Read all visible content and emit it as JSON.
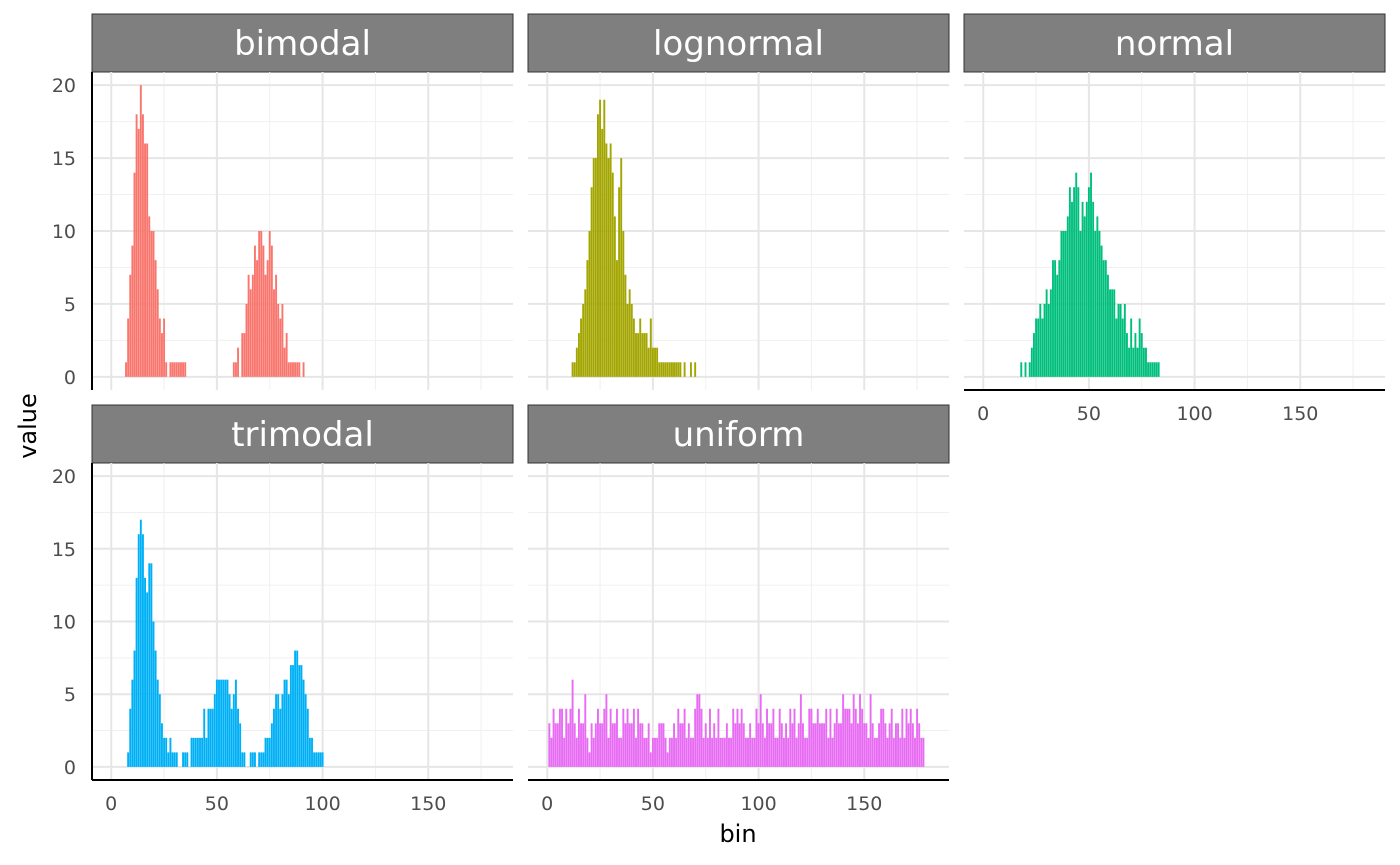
{
  "chart_data": {
    "type": "bar",
    "layout": "facet_wrap",
    "xlabel": "bin",
    "ylabel": "value",
    "xlim": [
      0,
      180
    ],
    "ylim": [
      0,
      20
    ],
    "x_ticks": [
      0,
      50,
      100,
      150
    ],
    "y_ticks": [
      0,
      5,
      10,
      15,
      20
    ],
    "grid": true,
    "legend": "none",
    "panels": [
      {
        "name": "bimodal",
        "color": "#F8766D",
        "bins": [
          7,
          8,
          9,
          10,
          11,
          12,
          13,
          14,
          15,
          16,
          17,
          18,
          19,
          20,
          21,
          22,
          23,
          24,
          25,
          26,
          28,
          29,
          30,
          31,
          32,
          33,
          34,
          35,
          58,
          59,
          60,
          62,
          63,
          64,
          65,
          66,
          67,
          68,
          69,
          70,
          71,
          72,
          73,
          74,
          75,
          76,
          77,
          78,
          79,
          80,
          81,
          82,
          83,
          84,
          85,
          86,
          87,
          88,
          89,
          91
        ],
        "values": [
          1,
          4,
          7,
          9,
          14,
          18,
          17,
          20,
          18,
          16,
          16,
          11,
          10,
          10,
          8,
          6,
          4,
          3,
          4,
          1,
          1,
          1,
          1,
          1,
          1,
          1,
          1,
          1,
          1,
          1,
          2,
          3,
          3,
          5,
          7,
          6,
          7,
          9,
          8,
          10,
          10,
          9,
          7,
          8,
          10,
          9,
          6,
          7,
          5,
          4,
          5,
          2,
          3,
          1,
          1,
          1,
          1,
          1,
          1,
          1
        ]
      },
      {
        "name": "lognormal",
        "color": "#A3A500",
        "bins": [
          12,
          13,
          14,
          15,
          16,
          17,
          18,
          19,
          20,
          21,
          22,
          23,
          24,
          25,
          26,
          27,
          28,
          29,
          30,
          31,
          32,
          33,
          34,
          35,
          36,
          37,
          38,
          39,
          40,
          41,
          42,
          43,
          44,
          45,
          46,
          47,
          48,
          49,
          50,
          51,
          52,
          53,
          54,
          55,
          56,
          57,
          58,
          59,
          60,
          61,
          62,
          63,
          65,
          68,
          70
        ],
        "values": [
          1,
          1,
          2,
          3,
          4,
          5,
          6,
          8,
          10,
          13,
          15,
          15,
          18,
          19,
          17,
          19,
          16,
          15,
          16,
          14,
          11,
          8,
          13,
          15,
          10,
          7,
          5,
          6,
          5,
          4,
          3,
          3,
          4,
          3,
          3,
          3,
          2,
          4,
          2,
          2,
          2,
          1,
          1,
          1,
          1,
          1,
          1,
          1,
          1,
          1,
          1,
          1,
          1,
          1,
          1
        ]
      },
      {
        "name": "normal",
        "color": "#00BF7D",
        "bins": [
          18,
          20,
          22,
          23,
          24,
          25,
          26,
          27,
          28,
          29,
          30,
          31,
          32,
          33,
          34,
          35,
          36,
          37,
          38,
          39,
          40,
          41,
          42,
          43,
          44,
          45,
          46,
          47,
          48,
          49,
          50,
          51,
          52,
          53,
          54,
          55,
          56,
          57,
          58,
          59,
          60,
          61,
          62,
          63,
          64,
          65,
          66,
          67,
          68,
          69,
          70,
          71,
          72,
          73,
          74,
          75,
          76,
          77,
          78,
          79,
          80,
          81,
          82,
          83
        ],
        "values": [
          1,
          1,
          1,
          2,
          3,
          4,
          4,
          5,
          4,
          5,
          6,
          5,
          6,
          8,
          8,
          7,
          8,
          10,
          10,
          10,
          11,
          13,
          12,
          13,
          14,
          13,
          10,
          12,
          11,
          12,
          13,
          14,
          12,
          10,
          11,
          10,
          9,
          8,
          8,
          7,
          6,
          6,
          6,
          4,
          5,
          5,
          4,
          5,
          3,
          2,
          4,
          2,
          3,
          2,
          4,
          3,
          2,
          2,
          1,
          1,
          1,
          1,
          1,
          1
        ]
      },
      {
        "name": "trimodal",
        "color": "#00B0F6",
        "bins": [
          8,
          9,
          10,
          11,
          12,
          13,
          14,
          15,
          16,
          17,
          18,
          19,
          20,
          21,
          22,
          23,
          24,
          25,
          26,
          27,
          28,
          29,
          30,
          31,
          34,
          35,
          36,
          38,
          39,
          40,
          41,
          42,
          43,
          44,
          45,
          46,
          47,
          48,
          49,
          50,
          51,
          52,
          53,
          54,
          55,
          56,
          57,
          58,
          59,
          60,
          61,
          62,
          63,
          66,
          67,
          68,
          70,
          71,
          72,
          73,
          74,
          75,
          76,
          77,
          78,
          79,
          80,
          81,
          82,
          83,
          84,
          85,
          86,
          87,
          88,
          89,
          90,
          91,
          92,
          93,
          94,
          95,
          96,
          97,
          98,
          99,
          100
        ],
        "values": [
          1,
          4,
          6,
          8,
          13,
          16,
          17,
          16,
          13,
          12,
          14,
          14,
          10,
          8,
          6,
          5,
          3,
          2,
          2,
          1,
          2,
          1,
          1,
          1,
          1,
          1,
          1,
          2,
          2,
          2,
          2,
          2,
          2,
          4,
          2,
          4,
          4,
          4,
          5,
          6,
          6,
          6,
          6,
          6,
          6,
          5,
          4,
          5,
          6,
          4,
          3,
          1,
          1,
          1,
          1,
          1,
          1,
          1,
          1,
          2,
          2,
          2,
          3,
          4,
          5,
          5,
          4,
          5,
          6,
          6,
          5,
          7,
          7,
          8,
          8,
          7,
          7,
          6,
          5,
          4,
          2,
          2,
          1,
          1,
          1,
          1,
          1
        ]
      },
      {
        "name": "uniform",
        "color": "#E76BF3",
        "bins": [
          1,
          2,
          3,
          4,
          5,
          6,
          7,
          8,
          9,
          10,
          11,
          12,
          13,
          14,
          15,
          16,
          17,
          18,
          19,
          20,
          21,
          22,
          23,
          24,
          25,
          26,
          27,
          28,
          29,
          30,
          31,
          32,
          33,
          34,
          35,
          36,
          37,
          38,
          39,
          40,
          41,
          42,
          43,
          44,
          45,
          46,
          47,
          48,
          49,
          50,
          51,
          52,
          53,
          54,
          55,
          56,
          57,
          58,
          59,
          60,
          61,
          62,
          63,
          64,
          65,
          66,
          67,
          68,
          69,
          70,
          71,
          72,
          73,
          74,
          75,
          76,
          77,
          78,
          79,
          80,
          81,
          82,
          83,
          84,
          85,
          86,
          87,
          88,
          89,
          90,
          91,
          92,
          93,
          94,
          95,
          96,
          97,
          98,
          99,
          100,
          101,
          102,
          103,
          104,
          105,
          106,
          107,
          108,
          109,
          110,
          111,
          112,
          113,
          114,
          115,
          116,
          117,
          118,
          119,
          120,
          121,
          122,
          123,
          124,
          125,
          126,
          127,
          128,
          129,
          130,
          131,
          132,
          133,
          134,
          135,
          136,
          137,
          138,
          139,
          140,
          141,
          142,
          143,
          144,
          145,
          146,
          147,
          148,
          149,
          150,
          151,
          152,
          153,
          154,
          155,
          156,
          157,
          158,
          159,
          160,
          161,
          162,
          163,
          164,
          165,
          166,
          167,
          168,
          169,
          170,
          171,
          172,
          173,
          174,
          175,
          176,
          177,
          178
        ],
        "values": [
          3,
          2,
          4,
          3,
          3,
          4,
          4,
          2,
          4,
          3,
          4,
          6,
          3,
          2,
          4,
          3,
          3,
          5,
          2,
          1,
          3,
          2,
          3,
          4,
          3,
          3,
          4,
          5,
          2,
          4,
          3,
          3,
          4,
          2,
          2,
          4,
          3,
          4,
          3,
          3,
          4,
          2,
          4,
          3,
          3,
          2,
          2,
          3,
          1,
          2,
          2,
          2,
          3,
          3,
          3,
          2,
          1,
          2,
          2,
          3,
          2,
          4,
          3,
          3,
          4,
          2,
          3,
          2,
          2,
          4,
          5,
          5,
          4,
          2,
          3,
          2,
          4,
          2,
          3,
          2,
          4,
          2,
          2,
          2,
          3,
          2,
          2,
          4,
          3,
          4,
          3,
          4,
          3,
          2,
          2,
          3,
          2,
          2,
          4,
          3,
          5,
          3,
          2,
          4,
          3,
          3,
          4,
          2,
          2,
          4,
          3,
          2,
          3,
          2,
          4,
          3,
          4,
          2,
          3,
          5,
          3,
          2,
          2,
          4,
          4,
          3,
          3,
          4,
          3,
          3,
          3,
          4,
          2,
          4,
          2,
          3,
          4,
          3,
          3,
          5,
          4,
          4,
          4,
          3,
          5,
          4,
          3,
          5,
          4,
          3,
          3,
          2,
          5,
          3,
          2,
          2,
          3,
          4,
          4,
          3,
          2,
          3,
          4,
          2,
          3,
          3,
          2,
          4,
          2,
          4,
          3,
          4,
          3,
          2,
          4,
          3,
          2,
          2
        ]
      }
    ]
  }
}
